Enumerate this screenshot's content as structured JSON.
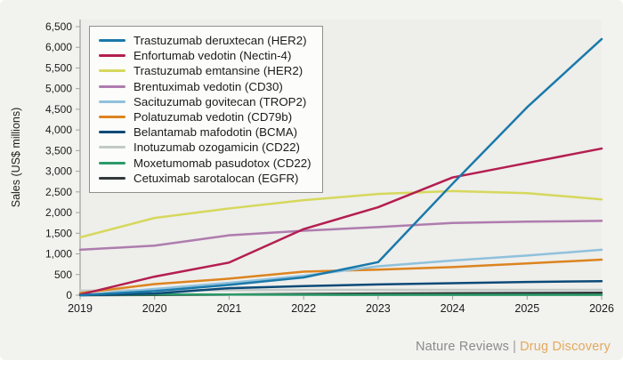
{
  "figure": {
    "background": "#f2f2ef",
    "plot_background": "#eeeeeb",
    "axis_color": "#a0a0a0",
    "tick_label_color": "#1b1b1b"
  },
  "footer": {
    "journal": "Nature Reviews",
    "separator": "|",
    "section": "Drug Discovery",
    "journal_color": "#8b8b8b",
    "section_color": "#e3a95e"
  },
  "chart_data": {
    "type": "line",
    "title": "",
    "xlabel": "",
    "ylabel": "Sales (US$ millions)",
    "x": [
      2019,
      2020,
      2021,
      2022,
      2023,
      2024,
      2025,
      2026
    ],
    "ylim": [
      0,
      6500
    ],
    "ytick_step": 500,
    "grid": false,
    "legend_position": "upper-left",
    "series": [
      {
        "name": "Trastuzumab deruxtecan (HER2)",
        "color": "#1a79aa",
        "values": [
          0,
          100,
          250,
          430,
          800,
          2700,
          4550,
          6200
        ]
      },
      {
        "name": "Enfortumab vedotin (Nectin-4)",
        "color": "#b41e50",
        "values": [
          15,
          450,
          790,
          1600,
          2130,
          2850,
          3200,
          3550
        ]
      },
      {
        "name": "Trastuzumab emtansine (HER2)",
        "color": "#d6d85c",
        "values": [
          1400,
          1870,
          2100,
          2300,
          2450,
          2520,
          2470,
          2320
        ]
      },
      {
        "name": "Brentuximab vedotin (CD30)",
        "color": "#ae7cae",
        "values": [
          1100,
          1200,
          1450,
          1560,
          1650,
          1750,
          1780,
          1800
        ]
      },
      {
        "name": "Sacituzumab govitecan (TROP2)",
        "color": "#8fc1dc",
        "values": [
          0,
          150,
          300,
          470,
          700,
          840,
          960,
          1100
        ]
      },
      {
        "name": "Polatuzumab vedotin (CD79b)",
        "color": "#dc841f",
        "values": [
          50,
          270,
          400,
          570,
          620,
          680,
          770,
          860
        ]
      },
      {
        "name": "Belantamab mafodotin (BCMA)",
        "color": "#0c4a77",
        "values": [
          0,
          40,
          170,
          220,
          260,
          290,
          320,
          340
        ]
      },
      {
        "name": "Inotuzumab ozogamicin (CD22)",
        "color": "#c2cac8",
        "values": [
          110,
          120,
          125,
          130,
          130,
          130,
          130,
          130
        ]
      },
      {
        "name": "Moxetumomab pasudotox (CD22)",
        "color": "#2b9a69",
        "values": [
          12,
          18,
          15,
          10,
          8,
          8,
          8,
          8
        ]
      },
      {
        "name": "Cetuximab sarotalocan (EGFR)",
        "color": "#32393a",
        "values": [
          0,
          5,
          15,
          30,
          40,
          48,
          55,
          60
        ]
      }
    ]
  }
}
